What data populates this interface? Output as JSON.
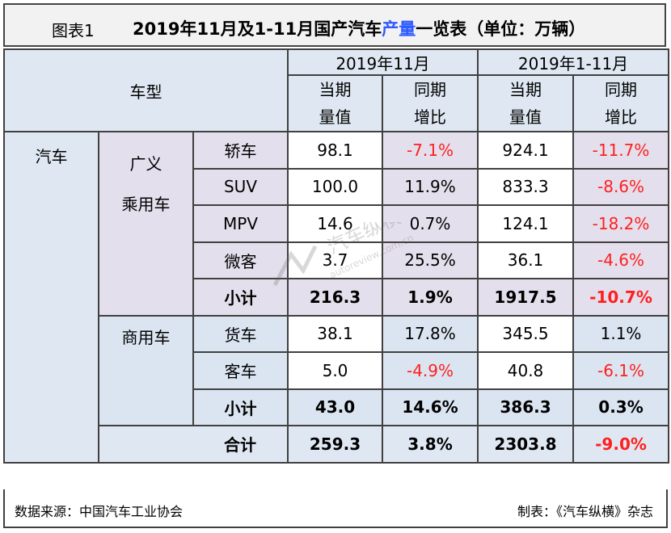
{
  "title": {
    "label": "图表1",
    "text_main": "2019年11月及1-11月国产汽车",
    "text_highlight": "产量",
    "text_tail": "一览表（单位：万辆）"
  },
  "header": {
    "vehicle_type": "车型",
    "period_month": "2019年11月",
    "period_ytd": "2019年1-11月",
    "current_value_l1": "当期",
    "current_value_l2": "量值",
    "yoy_l1": "同期",
    "yoy_l2": "增比"
  },
  "categories": {
    "auto": "汽车",
    "passenger_l1": "广义",
    "passenger_l2": "乘用车",
    "commercial": "商用车"
  },
  "rows": [
    {
      "name": "轿车",
      "m_val": "98.1",
      "m_yoy": "-7.1%",
      "y_val": "924.1",
      "y_yoy": "-11.7%"
    },
    {
      "name": "SUV",
      "m_val": "100.0",
      "m_yoy": "11.9%",
      "y_val": "833.3",
      "y_yoy": "-8.6%"
    },
    {
      "name": "MPV",
      "m_val": "14.6",
      "m_yoy": "0.7%",
      "y_val": "124.1",
      "y_yoy": "-18.2%"
    },
    {
      "name": "微客",
      "m_val": "3.7",
      "m_yoy": "25.5%",
      "y_val": "36.1",
      "y_yoy": "-4.6%"
    },
    {
      "name": "小计",
      "m_val": "216.3",
      "m_yoy": "1.9%",
      "y_val": "1917.5",
      "y_yoy": "-10.7%"
    },
    {
      "name": "货车",
      "m_val": "38.1",
      "m_yoy": "17.8%",
      "y_val": "345.5",
      "y_yoy": "1.1%"
    },
    {
      "name": "客车",
      "m_val": "5.0",
      "m_yoy": "-4.9%",
      "y_val": "40.8",
      "y_yoy": "-6.1%"
    },
    {
      "name": "小计",
      "m_val": "43.0",
      "m_yoy": "14.6%",
      "y_val": "386.3",
      "y_yoy": "0.3%"
    },
    {
      "name": "合计",
      "m_val": "259.3",
      "m_yoy": "3.8%",
      "y_val": "2303.8",
      "y_yoy": "-9.0%"
    }
  ],
  "footer": {
    "source": "数据来源：中国汽车工业协会",
    "credit": "制表：《汽车纵横》杂志"
  },
  "watermark": {
    "brand": "汽车纵横网",
    "url": "autoreview.com.cn"
  },
  "colors": {
    "header_bg": "#dfe8f2",
    "commercial_bg": "#dbe5f1",
    "passenger_bg": "#e4dfec",
    "negative_text": "#ff1f1f",
    "title_highlight": "#2f5aff"
  }
}
